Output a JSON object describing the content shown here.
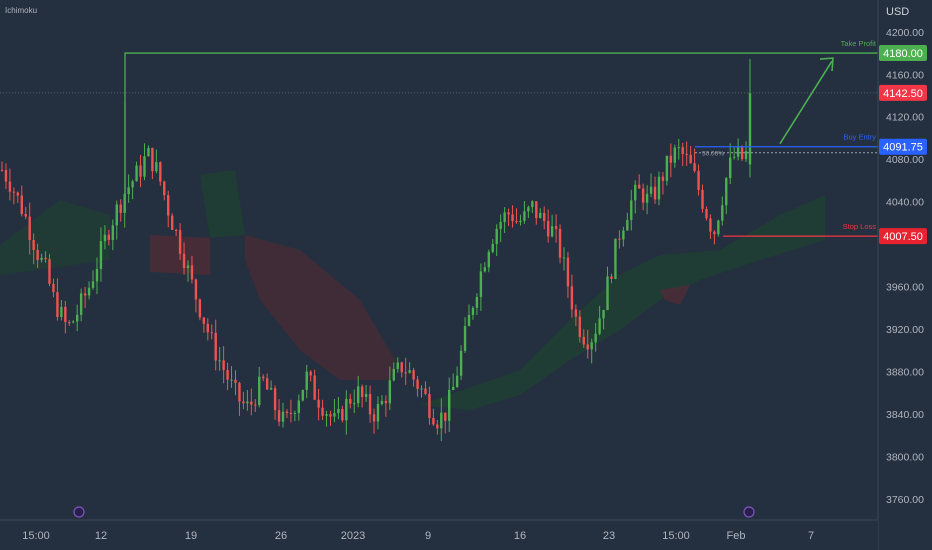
{
  "indicator_label": "Ichimoku",
  "currency_label": "USD",
  "colors": {
    "background": "#242f3f",
    "grid": "#2c3748",
    "up": "#26a69a",
    "up_bright": "#4caf50",
    "down": "#ef5350",
    "axis_text": "#b2b5be",
    "take_profit": "#4caf50",
    "entry": "#2962ff",
    "stop_loss": "#f23645",
    "cloud_bull": "#1f3f34",
    "cloud_bear": "#4a2c36"
  },
  "chart_data": {
    "type": "candlestick",
    "title": "",
    "ylim": [
      3740,
      4230
    ],
    "y_ticks": [
      4200,
      4160,
      4120,
      4080,
      4040,
      3960,
      3920,
      3880,
      3840,
      3800,
      3760
    ],
    "y_tick_labels": [
      "4200.00",
      "4160.00",
      "4120.00",
      "4080.00",
      "4040.00",
      "3960.00",
      "3920.00",
      "3880.00",
      "3840.00",
      "3800.00",
      "3760.00"
    ],
    "x_ticks": [
      "15:00",
      "12",
      "19",
      "26",
      "2023",
      "9",
      "16",
      "23",
      "15:00",
      "Feb",
      "7"
    ],
    "grid": false,
    "levels": [
      {
        "name": "take_profit",
        "label": "Take Profit",
        "price": 4180.0,
        "price_label": "4180.00"
      },
      {
        "name": "current",
        "label": "",
        "price": 4142.5,
        "price_label": "4142.50"
      },
      {
        "name": "entry",
        "label": "Buy Entry",
        "price": 4091.75,
        "price_label": "4091.75"
      },
      {
        "name": "stop_loss",
        "label": "Stop Loss",
        "price": 4007.5,
        "price_label": "4007.50"
      }
    ],
    "fib_label": "50.00%",
    "close_path": [
      4070,
      4060,
      4045,
      4030,
      4010,
      3990,
      3975,
      3950,
      3935,
      3920,
      3930,
      3945,
      3960,
      3980,
      4000,
      4020,
      4035,
      4050,
      4060,
      4070,
      4085,
      4075,
      4055,
      4030,
      4010,
      3990,
      3965,
      3945,
      3925,
      3905,
      3890,
      3875,
      3860,
      3850,
      3845,
      3860,
      3870,
      3855,
      3840,
      3830,
      3845,
      3860,
      3875,
      3860,
      3850,
      3840,
      3830,
      3845,
      3855,
      3860,
      3850,
      3840,
      3845,
      3860,
      3875,
      3885,
      3880,
      3870,
      3860,
      3845,
      3835,
      3840,
      3860,
      3890,
      3920,
      3950,
      3975,
      4000,
      4015,
      4025,
      4030,
      4020,
      4025,
      4035,
      4025,
      4020,
      4010,
      3990,
      3960,
      3930,
      3915,
      3910,
      3925,
      3950,
      3980,
      4010,
      4030,
      4045,
      4050,
      4040,
      4050,
      4065,
      4080,
      4088,
      4082,
      4070,
      4050,
      4030,
      4010,
      4040,
      4070,
      4085,
      4080,
      4090,
      4142.5
    ]
  }
}
